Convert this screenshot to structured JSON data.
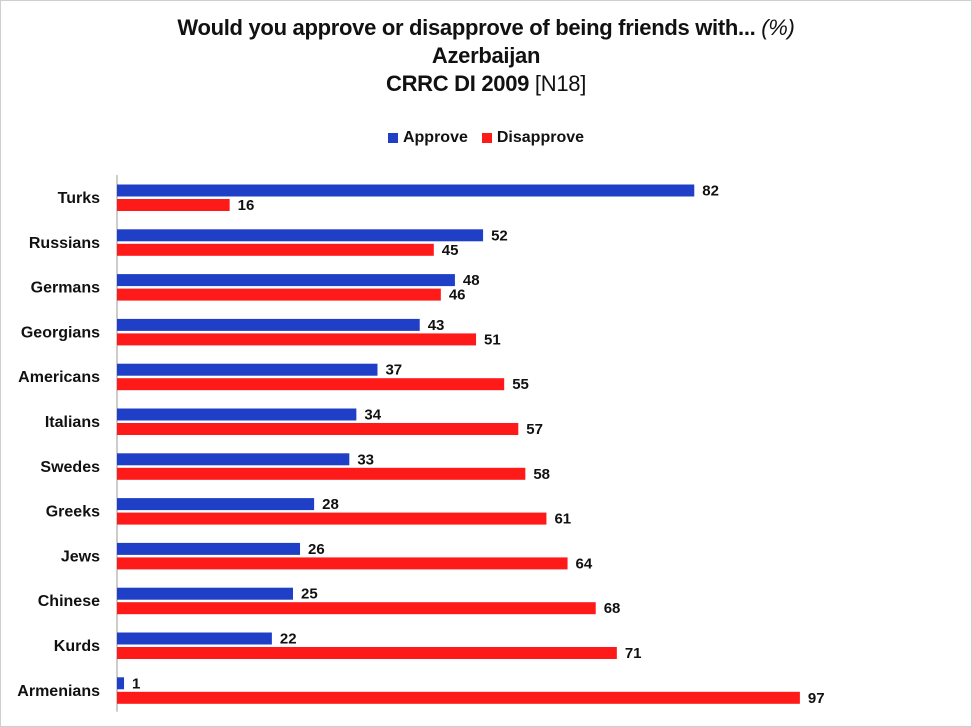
{
  "titles": {
    "line1_main": "Would you approve or disapprove of being friends with...",
    "line1_suffix": "(%)",
    "line2": "Azerbaijan",
    "line3_main": "CRRC DI 2009",
    "line3_suffix": "[N18]"
  },
  "chart_data": {
    "type": "bar",
    "orientation": "horizontal",
    "title": "Would you approve or disapprove of being friends with... (%)",
    "subtitle": "Azerbaijan — CRRC DI 2009 [N18]",
    "categories": [
      "Turks",
      "Russians",
      "Germans",
      "Georgians",
      "Americans",
      "Italians",
      "Swedes",
      "Greeks",
      "Jews",
      "Chinese",
      "Kurds",
      "Armenians"
    ],
    "series": [
      {
        "name": "Approve",
        "color": "#1f3fc6",
        "values": [
          82,
          52,
          48,
          43,
          37,
          34,
          33,
          28,
          26,
          25,
          22,
          1
        ]
      },
      {
        "name": "Disapprove",
        "color": "#ff1a1a",
        "values": [
          16,
          45,
          46,
          51,
          55,
          57,
          58,
          61,
          64,
          68,
          71,
          97
        ]
      }
    ],
    "xlim": [
      0,
      100
    ],
    "grid": false,
    "legend_position": "top-center",
    "data_labels": true
  }
}
